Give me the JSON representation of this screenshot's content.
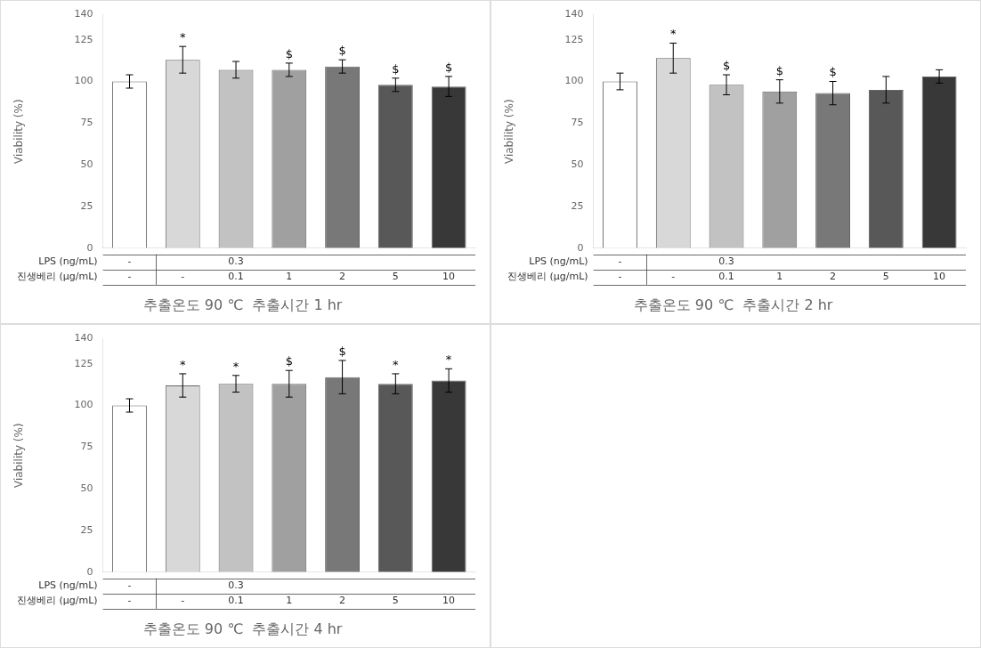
{
  "chart_data": [
    {
      "type": "bar",
      "title": "추출온도 90 ℃  추출시간 1 hr",
      "values": [
        100,
        113,
        107,
        107,
        109,
        98,
        97
      ],
      "errors": [
        4,
        8,
        5,
        4,
        4,
        4,
        6
      ],
      "annotations": [
        null,
        "*",
        null,
        "$",
        "$",
        "$",
        "$"
      ],
      "x_label_rows": [
        {
          "name": "LPS (ng/mL)",
          "labels": [
            "-",
            null,
            "0.3",
            null,
            null,
            null,
            null
          ]
        },
        {
          "name": "진생베리 (μg/mL)",
          "labels": [
            "-",
            "-",
            "0.1",
            "1",
            "2",
            "5",
            "10"
          ]
        }
      ],
      "colors": [
        "#ffffff",
        "#d8d8d8",
        "#c2c2c2",
        "#a0a0a0",
        "#787878",
        "#585858",
        "#383838"
      ],
      "ylabel": "Viability (%)",
      "ylim": [
        0,
        140
      ],
      "yticks": [
        0,
        25,
        50,
        75,
        100,
        125,
        140
      ],
      "grid": false
    },
    {
      "type": "bar",
      "title": "추출온도 90 ℃  추출시간 2 hr",
      "values": [
        100,
        114,
        98,
        94,
        93,
        95,
        103
      ],
      "errors": [
        5,
        9,
        6,
        7,
        7,
        8,
        4
      ],
      "annotations": [
        null,
        "*",
        "$",
        "$",
        "$",
        null,
        null
      ],
      "x_label_rows": [
        {
          "name": "LPS (ng/mL)",
          "labels": [
            "-",
            null,
            "0.3",
            null,
            null,
            null,
            null
          ]
        },
        {
          "name": "진생베리 (μg/mL)",
          "labels": [
            "-",
            "-",
            "0.1",
            "1",
            "2",
            "5",
            "10"
          ]
        }
      ],
      "colors": [
        "#ffffff",
        "#d8d8d8",
        "#c2c2c2",
        "#a0a0a0",
        "#787878",
        "#585858",
        "#383838"
      ],
      "ylabel": "Viability (%)",
      "ylim": [
        0,
        140
      ],
      "yticks": [
        0,
        25,
        50,
        75,
        100,
        125,
        140
      ],
      "grid": false
    },
    {
      "type": "bar",
      "title": "추출온도 90 ℃  추출시간 4 hr",
      "values": [
        100,
        112,
        113,
        113,
        117,
        113,
        115
      ],
      "errors": [
        4,
        7,
        5,
        8,
        10,
        6,
        7
      ],
      "annotations": [
        null,
        "*",
        "*",
        "$",
        "$",
        "*",
        "*"
      ],
      "x_label_rows": [
        {
          "name": "LPS (ng/mL)",
          "labels": [
            "-",
            null,
            "0.3",
            null,
            null,
            null,
            null
          ]
        },
        {
          "name": "진생베리 (μg/mL)",
          "labels": [
            "-",
            "-",
            "0.1",
            "1",
            "2",
            "5",
            "10"
          ]
        }
      ],
      "colors": [
        "#ffffff",
        "#d8d8d8",
        "#c2c2c2",
        "#a0a0a0",
        "#787878",
        "#585858",
        "#383838"
      ],
      "ylabel": "Viability (%)",
      "ylim": [
        0,
        140
      ],
      "yticks": [
        0,
        25,
        50,
        75,
        100,
        125,
        140
      ],
      "grid": false
    }
  ]
}
